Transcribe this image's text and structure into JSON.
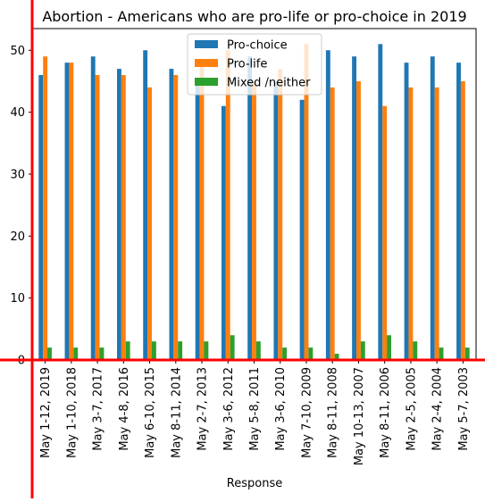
{
  "chart_data": {
    "type": "bar",
    "title": "Abortion - Americans who are pro-life or pro-choice in 2019",
    "xlabel": "Response",
    "ylabel": "",
    "ylim": [
      0,
      53.5
    ],
    "yticks": [
      0,
      10,
      20,
      30,
      40,
      50
    ],
    "legend_position": "top-center",
    "grid": false,
    "categories": [
      "May 1-12, 2019",
      "May 1-10, 2018",
      "May 3-7, 2017",
      "May 4-8, 2016",
      "May 6-10, 2015",
      "May 8-11, 2014",
      "May 2-7, 2013",
      "May 3-6, 2012",
      "May 5-8, 2011",
      "May 3-6, 2010",
      "May 7-10, 2009",
      "May 8-11, 2008",
      "May 10-13, 2007",
      "May 8-11, 2006",
      "May 2-5, 2005",
      "May 2-4, 2004",
      "May 5-7, 2003"
    ],
    "series": [
      {
        "name": "Pro-choice",
        "color": "#1f77b4",
        "values": [
          46,
          48,
          49,
          47,
          50,
          47,
          45,
          41,
          49,
          45,
          42,
          50,
          49,
          51,
          48,
          49,
          48
        ]
      },
      {
        "name": "Pro-life",
        "color": "#ff7f0e",
        "values": [
          49,
          48,
          46,
          46,
          44,
          46,
          48,
          50,
          45,
          47,
          51,
          44,
          45,
          41,
          44,
          44,
          45
        ]
      },
      {
        "name": "Mixed /neither",
        "color": "#2ca02c",
        "values": [
          2,
          2,
          2,
          3,
          3,
          3,
          3,
          4,
          3,
          2,
          2,
          1,
          3,
          4,
          3,
          2,
          2
        ]
      }
    ]
  },
  "decor": {
    "red_axis_color": "#ff0000"
  }
}
